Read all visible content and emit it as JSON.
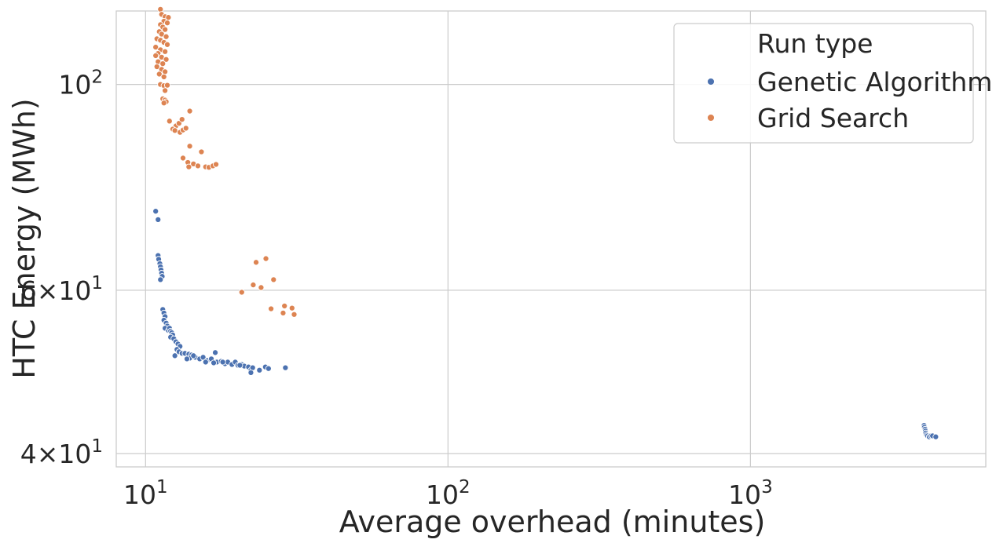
{
  "chart_data": {
    "type": "scatter",
    "title": "",
    "xlabel": "Average overhead (minutes)",
    "ylabel": "HTC Energy (MWh)",
    "xscale": "log",
    "yscale": "log",
    "xlim": [
      8,
      6000
    ],
    "ylim": [
      38.7,
      120
    ],
    "grid": true,
    "x_ticks": [
      {
        "value": 10,
        "base": "10",
        "exp": "1"
      },
      {
        "value": 100,
        "base": "10",
        "exp": "2"
      },
      {
        "value": 1000,
        "base": "10",
        "exp": "3"
      }
    ],
    "y_ticks": [
      {
        "value": 40,
        "mant": "4",
        "base": "10",
        "exp": "1"
      },
      {
        "value": 60,
        "mant": "6",
        "base": "10",
        "exp": "1"
      },
      {
        "value": 100,
        "mant": "",
        "base": "10",
        "exp": "2"
      }
    ],
    "legend": {
      "title": "Run type",
      "placement": "upper right"
    },
    "series": [
      {
        "name": "Genetic Algorithm",
        "color": "#4c72b0",
        "points": [
          [
            10.8,
            73.0
          ],
          [
            11.0,
            71.5
          ],
          [
            11.0,
            65.4
          ],
          [
            11.05,
            64.8
          ],
          [
            11.15,
            64.1
          ],
          [
            11.2,
            63.6
          ],
          [
            11.25,
            63.1
          ],
          [
            11.3,
            62.6
          ],
          [
            11.35,
            62.1
          ],
          [
            11.2,
            61.6
          ],
          [
            11.4,
            57.2
          ],
          [
            11.5,
            56.7
          ],
          [
            11.6,
            56.2
          ],
          [
            11.5,
            55.7
          ],
          [
            11.7,
            55.3
          ],
          [
            11.8,
            54.9
          ],
          [
            11.6,
            54.6
          ],
          [
            11.9,
            54.3
          ],
          [
            12.0,
            54.6
          ],
          [
            12.1,
            54.2
          ],
          [
            12.2,
            54.0
          ],
          [
            12.3,
            53.7
          ],
          [
            12.1,
            53.4
          ],
          [
            12.4,
            53.2
          ],
          [
            12.6,
            52.8
          ],
          [
            12.8,
            52.5
          ],
          [
            13.0,
            52.2
          ],
          [
            12.7,
            51.8
          ],
          [
            12.9,
            51.5
          ],
          [
            13.2,
            51.3
          ],
          [
            12.5,
            51.0
          ],
          [
            13.5,
            51.3
          ],
          [
            13.9,
            51.2
          ],
          [
            14.2,
            51.1
          ],
          [
            14.6,
            50.8
          ],
          [
            15.1,
            50.6
          ],
          [
            15.5,
            50.8
          ],
          [
            16.0,
            50.4
          ],
          [
            16.5,
            50.6
          ],
          [
            17.0,
            51.4
          ],
          [
            17.2,
            50.2
          ],
          [
            17.8,
            50.3
          ],
          [
            18.3,
            50.0
          ],
          [
            18.7,
            50.2
          ],
          [
            19.3,
            49.9
          ],
          [
            19.8,
            50.2
          ],
          [
            20.2,
            49.8
          ],
          [
            20.8,
            49.9
          ],
          [
            21.2,
            49.7
          ],
          [
            21.9,
            49.6
          ],
          [
            22.3,
            49.2
          ],
          [
            22.6,
            49.5
          ],
          [
            23.8,
            49.2
          ],
          [
            24.9,
            49.6
          ],
          [
            25.5,
            49.4
          ],
          [
            29.0,
            49.5
          ],
          [
            14.0,
            50.7
          ],
          [
            14.4,
            51.0
          ],
          [
            13.7,
            50.6
          ],
          [
            15.8,
            50.2
          ],
          [
            20.5,
            49.8
          ],
          [
            22.3,
            48.9
          ],
          [
            18.0,
            50.2
          ],
          [
            16.8,
            50.1
          ],
          [
            3750,
            42.9
          ],
          [
            3760,
            42.7
          ],
          [
            3780,
            42.5
          ],
          [
            3790,
            42.3
          ],
          [
            3800,
            42.1
          ],
          [
            3820,
            41.9
          ],
          [
            3850,
            41.8
          ],
          [
            3900,
            41.7
          ],
          [
            3950,
            41.8
          ],
          [
            4000,
            41.8
          ],
          [
            4100,
            41.7
          ]
        ]
      },
      {
        "name": "Grid Search",
        "color": "#dd8452",
        "points": [
          [
            11.2,
            120.5
          ],
          [
            11.3,
            119.0
          ],
          [
            11.6,
            118.3
          ],
          [
            11.9,
            118.1
          ],
          [
            11.5,
            117.0
          ],
          [
            11.8,
            116.5
          ],
          [
            11.2,
            116.0
          ],
          [
            11.4,
            115.3
          ],
          [
            11.6,
            114.6
          ],
          [
            11.1,
            114.0
          ],
          [
            11.3,
            113.3
          ],
          [
            11.7,
            112.6
          ],
          [
            10.9,
            112.0
          ],
          [
            11.2,
            111.6
          ],
          [
            11.5,
            111.0
          ],
          [
            11.8,
            110.4
          ],
          [
            10.8,
            109.7
          ],
          [
            11.2,
            109.0
          ],
          [
            11.6,
            108.5
          ],
          [
            11.0,
            108.0
          ],
          [
            10.8,
            107.4
          ],
          [
            11.3,
            107.0
          ],
          [
            11.7,
            106.4
          ],
          [
            11.0,
            105.8
          ],
          [
            11.4,
            105.3
          ],
          [
            10.9,
            104.5
          ],
          [
            11.3,
            103.8
          ],
          [
            11.6,
            103.2
          ],
          [
            11.1,
            102.6
          ],
          [
            11.5,
            101.9
          ],
          [
            11.2,
            100.0
          ],
          [
            11.5,
            99.7
          ],
          [
            11.8,
            99.8
          ],
          [
            11.6,
            98.5
          ],
          [
            11.4,
            96.5
          ],
          [
            11.6,
            96.2
          ],
          [
            11.7,
            95.8
          ],
          [
            11.5,
            95.5
          ],
          [
            12.0,
            91.3
          ],
          [
            12.6,
            90.2
          ],
          [
            12.9,
            90.8
          ],
          [
            13.2,
            91.7
          ],
          [
            12.3,
            89.5
          ],
          [
            12.5,
            89.2
          ],
          [
            13.0,
            88.8
          ],
          [
            13.3,
            89.3
          ],
          [
            14.0,
            93.6
          ],
          [
            13.6,
            89.7
          ],
          [
            14.0,
            85.8
          ],
          [
            15.3,
            84.6
          ],
          [
            13.3,
            83.3
          ],
          [
            13.8,
            82.4
          ],
          [
            13.9,
            81.5
          ],
          [
            14.4,
            82.1
          ],
          [
            14.9,
            81.7
          ],
          [
            15.8,
            81.5
          ],
          [
            16.2,
            81.4
          ],
          [
            16.7,
            81.7
          ],
          [
            17.1,
            82.0
          ],
          [
            25.0,
            64.9
          ],
          [
            23.2,
            64.3
          ],
          [
            22.7,
            60.8
          ],
          [
            24.1,
            60.4
          ],
          [
            26.5,
            61.6
          ],
          [
            20.8,
            59.7
          ],
          [
            26.0,
            57.3
          ],
          [
            28.8,
            57.7
          ],
          [
            30.5,
            57.4
          ],
          [
            28.5,
            56.7
          ],
          [
            31.0,
            56.5
          ]
        ]
      }
    ]
  }
}
